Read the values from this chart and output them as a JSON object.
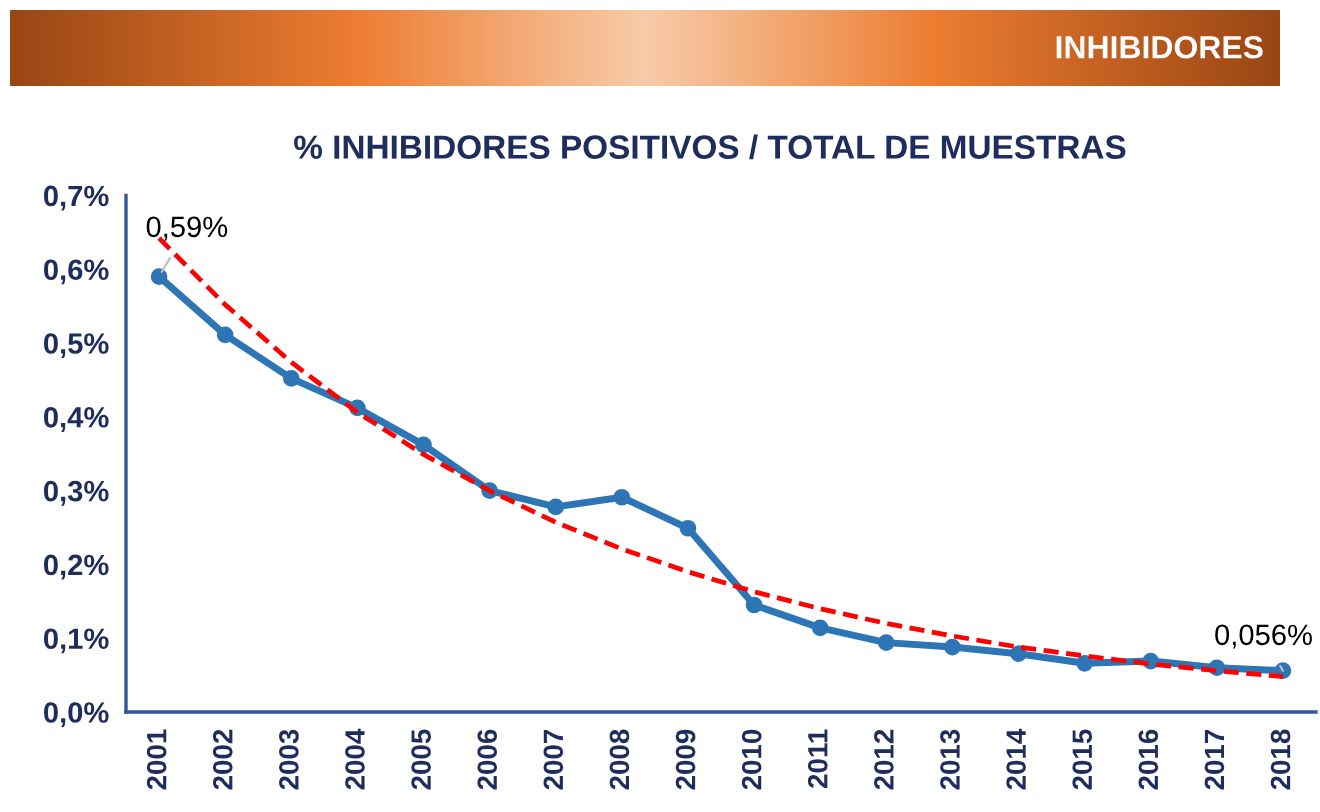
{
  "chart_data": {
    "type": "line",
    "title": "INHIBIDORES",
    "subtitle": "% INHIBIDORES POSITIVOS / TOTAL DE MUESTRAS",
    "categories": [
      "2001",
      "2002",
      "2003",
      "2004",
      "2005",
      "2006",
      "2007",
      "2008",
      "2009",
      "2010",
      "2011",
      "2012",
      "2013",
      "2014",
      "2015",
      "2016",
      "2017",
      "2018"
    ],
    "series": [
      {
        "color": "#2e75b6",
        "marker": "circle",
        "line_style": "solid",
        "values": [
          0.59,
          0.511,
          0.452,
          0.412,
          0.362,
          0.3,
          0.278,
          0.291,
          0.249,
          0.145,
          0.114,
          0.094,
          0.088,
          0.079,
          0.066,
          0.069,
          0.06,
          0.056
        ],
        "value_labels": [
          "0,59%",
          null,
          null,
          null,
          null,
          null,
          null,
          null,
          null,
          null,
          null,
          null,
          null,
          null,
          null,
          null,
          null,
          "0,056%"
        ]
      },
      {
        "type": "line",
        "color": "#ff0000",
        "marker": "none",
        "line_style": "dashed",
        "values": [
          0.642,
          0.552,
          0.474,
          0.406,
          0.349,
          0.3,
          0.257,
          0.221,
          0.19,
          0.163,
          0.14,
          0.12,
          0.103,
          0.088,
          0.076,
          0.065,
          0.056,
          0.048
        ]
      }
    ],
    "ylim": [
      0,
      0.7
    ],
    "yticks": [
      {
        "value": 0,
        "label": "0,0%"
      },
      {
        "value": 0.1,
        "label": "0,1%"
      },
      {
        "value": 0.2,
        "label": "0,2%"
      },
      {
        "value": 0.3,
        "label": "0,3%"
      },
      {
        "value": 0.4,
        "label": "0,4%"
      },
      {
        "value": 0.5,
        "label": "0,5%"
      },
      {
        "value": 0.6,
        "label": "0,6%"
      },
      {
        "value": 0.7,
        "label": "0,7%"
      }
    ],
    "grid": false,
    "legend": false
  }
}
